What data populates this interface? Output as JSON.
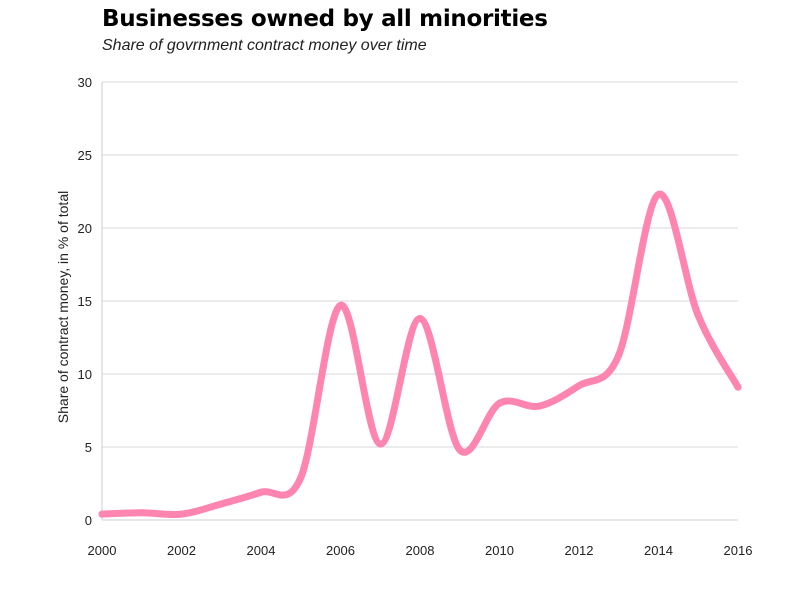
{
  "chart_data": {
    "type": "line",
    "title": "Businesses owned by all minorities",
    "subtitle": "Share of govrnment contract money over time",
    "xlabel": "",
    "ylabel": "Share of contract money, in % of total",
    "xlim": [
      2000,
      2016
    ],
    "ylim": [
      0,
      30
    ],
    "xticks": [
      2000,
      2002,
      2004,
      2006,
      2008,
      2010,
      2012,
      2014,
      2016
    ],
    "yticks": [
      0,
      5,
      10,
      15,
      20,
      25,
      30
    ],
    "grid": true,
    "series_color": "#ff85b1",
    "x": [
      2000,
      2001,
      2002,
      2003,
      2004,
      2005,
      2006,
      2007,
      2008,
      2009,
      2010,
      2011,
      2012,
      2013,
      2014,
      2015,
      2016
    ],
    "values": [
      0.4,
      0.5,
      0.4,
      1.1,
      1.9,
      2.9,
      14.7,
      5.2,
      13.8,
      4.8,
      8.0,
      7.8,
      9.2,
      11.3,
      22.3,
      14.0,
      9.1
    ]
  }
}
